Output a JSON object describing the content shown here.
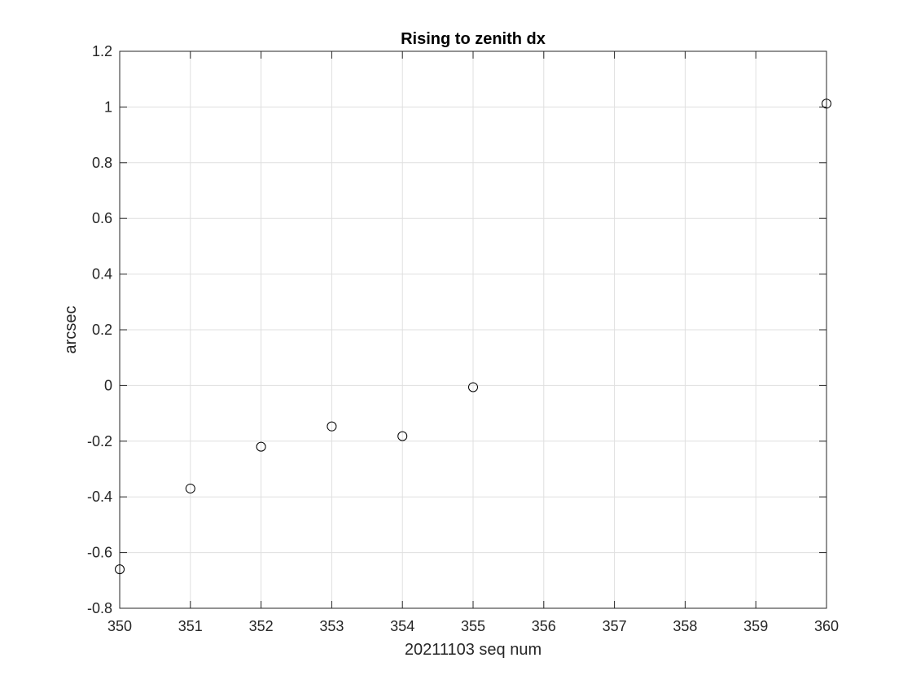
{
  "chart_data": {
    "type": "scatter",
    "title": "Rising to zenith dx",
    "xlabel": "20211103 seq num",
    "ylabel": "arcsec",
    "xlim": [
      350,
      360
    ],
    "ylim": [
      -0.8,
      1.2
    ],
    "x_ticks": [
      350,
      351,
      352,
      353,
      354,
      355,
      356,
      357,
      358,
      359,
      360
    ],
    "y_ticks": [
      -0.8,
      -0.6,
      -0.4,
      -0.2,
      0,
      0.2,
      0.4,
      0.6,
      0.8,
      1,
      1.2
    ],
    "grid": true,
    "marker": "open-circle",
    "series": [
      {
        "name": "dx",
        "x": [
          350,
          351,
          352,
          353,
          354,
          355,
          360
        ],
        "y": [
          -0.66,
          -0.37,
          -0.22,
          -0.147,
          -0.182,
          -0.006,
          1.012
        ]
      }
    ],
    "colors": {
      "marker": "#000000",
      "grid": "#dfdfdf",
      "axis": "#262626",
      "background": "#ffffff"
    }
  }
}
